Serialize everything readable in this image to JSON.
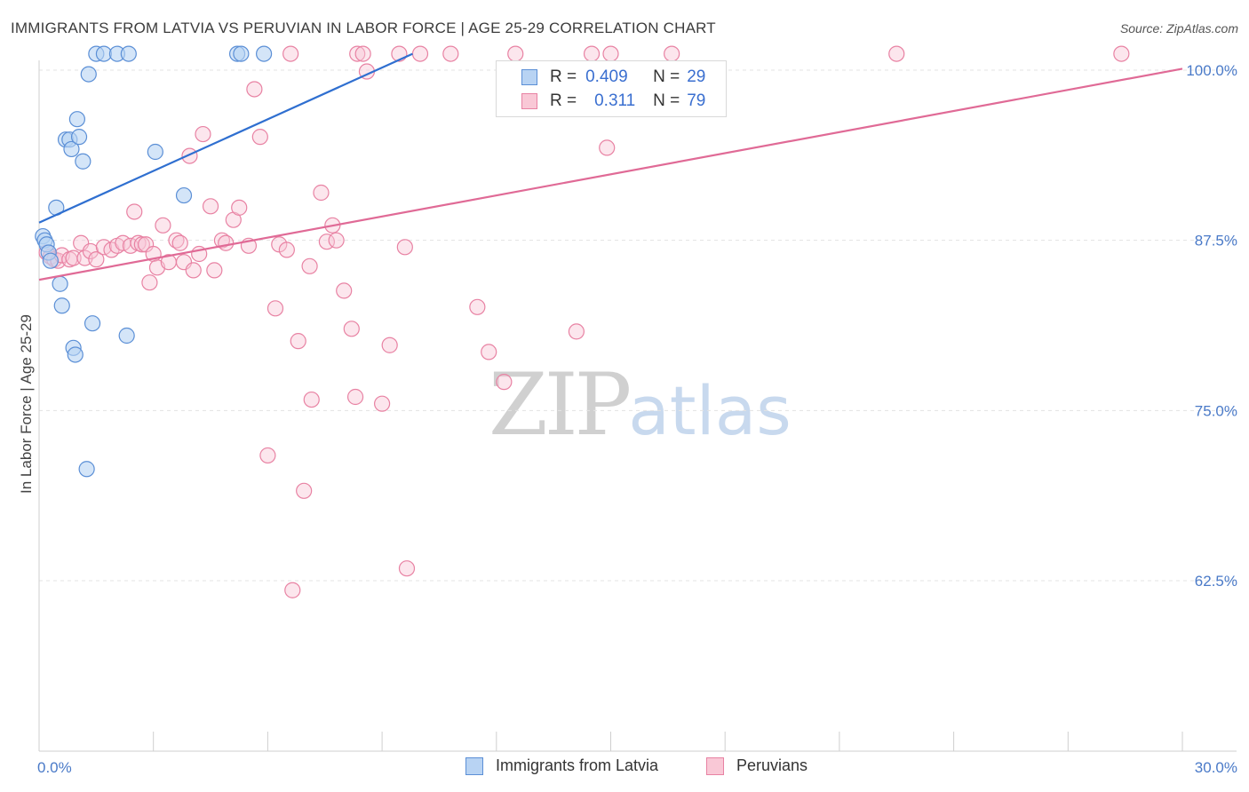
{
  "header": {
    "title": "IMMIGRANTS FROM LATVIA VS PERUVIAN IN LABOR FORCE | AGE 25-29 CORRELATION CHART",
    "source": "Source: ZipAtlas.com"
  },
  "watermark": {
    "zip": "ZIP",
    "atlas": "atlas"
  },
  "colors": {
    "latvia_fill": "#b8d3f3",
    "latvia_stroke": "#5b8fd6",
    "latvia_line": "#2f6fd0",
    "peru_fill": "#f9c8d6",
    "peru_stroke": "#e882a3",
    "peru_line": "#e06a96",
    "tick_text": "#4a7ac8",
    "grid": "#e3e3e3"
  },
  "legend": {
    "rows": [
      {
        "r_label": "R =",
        "r_value": "0.409",
        "n_label": "N =",
        "n_value": "29"
      },
      {
        "r_label": "R =",
        "r_value": "0.311",
        "n_label": "N =",
        "n_value": "79"
      }
    ]
  },
  "bottom_legend": {
    "items": [
      {
        "label": "Immigrants from Latvia"
      },
      {
        "label": "Peruvians"
      }
    ]
  },
  "chart_data": {
    "type": "scatter",
    "title": "IMMIGRANTS FROM LATVIA VS PERUVIAN IN LABOR FORCE | AGE 25-29 CORRELATION CHART",
    "xlabel": "",
    "ylabel": "In Labor Force | Age 25-29",
    "xlim": [
      0,
      30
    ],
    "ylim": [
      50,
      101.2
    ],
    "x_tick_labels": [
      {
        "value": 0,
        "label": "0.0%"
      },
      {
        "value": 30,
        "label": "30.0%"
      }
    ],
    "y_tick_labels": [
      {
        "value": 100,
        "label": "100.0%"
      },
      {
        "value": 87.5,
        "label": "87.5%"
      },
      {
        "value": 75,
        "label": "75.0%"
      },
      {
        "value": 62.5,
        "label": "62.5%"
      }
    ],
    "x_minor_ticks": [
      3,
      6,
      9,
      12,
      15,
      18,
      21,
      24,
      27
    ],
    "grid": true,
    "legend_position": "top-center",
    "series": [
      {
        "name": "Immigrants from Latvia",
        "R": 0.409,
        "N": 29,
        "trend": {
          "x": [
            0,
            9.8
          ],
          "y": [
            88.8,
            101.2
          ]
        },
        "points": [
          [
            0.1,
            87.8
          ],
          [
            0.15,
            87.5
          ],
          [
            0.2,
            87.2
          ],
          [
            0.25,
            86.6
          ],
          [
            0.3,
            86.0
          ],
          [
            0.45,
            89.9
          ],
          [
            0.55,
            84.3
          ],
          [
            0.6,
            82.7
          ],
          [
            0.7,
            94.9
          ],
          [
            0.8,
            94.9
          ],
          [
            0.85,
            94.2
          ],
          [
            0.9,
            79.6
          ],
          [
            0.95,
            79.1
          ],
          [
            1.0,
            96.4
          ],
          [
            1.05,
            95.1
          ],
          [
            1.15,
            93.3
          ],
          [
            1.25,
            70.7
          ],
          [
            1.3,
            99.7
          ],
          [
            1.4,
            81.4
          ],
          [
            1.5,
            101.2
          ],
          [
            1.7,
            101.2
          ],
          [
            2.05,
            101.2
          ],
          [
            2.3,
            80.5
          ],
          [
            2.35,
            101.2
          ],
          [
            3.05,
            94.0
          ],
          [
            3.8,
            90.8
          ],
          [
            5.2,
            101.2
          ],
          [
            5.3,
            101.2
          ],
          [
            5.9,
            101.2
          ]
        ]
      },
      {
        "name": "Peruvians",
        "R": 0.311,
        "N": 79,
        "trend": {
          "x": [
            0,
            30
          ],
          "y": [
            84.6,
            100.1
          ]
        },
        "points": [
          [
            0.2,
            86.6
          ],
          [
            0.3,
            86.3
          ],
          [
            0.4,
            86.1
          ],
          [
            0.5,
            86.0
          ],
          [
            0.6,
            86.4
          ],
          [
            0.8,
            86.1
          ],
          [
            0.9,
            86.2
          ],
          [
            1.1,
            87.3
          ],
          [
            1.2,
            86.2
          ],
          [
            1.35,
            86.7
          ],
          [
            1.5,
            86.1
          ],
          [
            1.7,
            87.0
          ],
          [
            1.9,
            86.8
          ],
          [
            2.05,
            87.1
          ],
          [
            2.2,
            87.3
          ],
          [
            2.4,
            87.1
          ],
          [
            2.5,
            89.6
          ],
          [
            2.6,
            87.3
          ],
          [
            2.7,
            87.2
          ],
          [
            2.8,
            87.2
          ],
          [
            2.9,
            84.4
          ],
          [
            3.0,
            86.5
          ],
          [
            3.1,
            85.5
          ],
          [
            3.25,
            88.6
          ],
          [
            3.4,
            85.9
          ],
          [
            3.6,
            87.5
          ],
          [
            3.7,
            87.3
          ],
          [
            3.8,
            85.9
          ],
          [
            3.95,
            93.7
          ],
          [
            4.05,
            85.3
          ],
          [
            4.2,
            86.5
          ],
          [
            4.3,
            95.3
          ],
          [
            4.5,
            90.0
          ],
          [
            4.6,
            85.3
          ],
          [
            4.8,
            87.5
          ],
          [
            4.9,
            87.3
          ],
          [
            5.1,
            89.0
          ],
          [
            5.25,
            89.9
          ],
          [
            5.5,
            87.1
          ],
          [
            5.65,
            98.6
          ],
          [
            5.8,
            95.1
          ],
          [
            6.0,
            71.7
          ],
          [
            6.2,
            82.5
          ],
          [
            6.3,
            87.2
          ],
          [
            6.5,
            86.8
          ],
          [
            6.6,
            101.2
          ],
          [
            6.65,
            61.8
          ],
          [
            6.8,
            80.1
          ],
          [
            6.95,
            69.1
          ],
          [
            7.1,
            85.6
          ],
          [
            7.15,
            75.8
          ],
          [
            7.4,
            91.0
          ],
          [
            7.55,
            87.4
          ],
          [
            7.7,
            88.6
          ],
          [
            7.8,
            87.5
          ],
          [
            8.0,
            83.8
          ],
          [
            8.2,
            81.0
          ],
          [
            8.3,
            76.0
          ],
          [
            8.35,
            101.2
          ],
          [
            8.5,
            101.2
          ],
          [
            8.6,
            99.9
          ],
          [
            9.0,
            75.5
          ],
          [
            9.2,
            79.8
          ],
          [
            9.45,
            101.2
          ],
          [
            9.6,
            87.0
          ],
          [
            9.65,
            63.4
          ],
          [
            10.0,
            101.2
          ],
          [
            10.8,
            101.2
          ],
          [
            11.5,
            82.6
          ],
          [
            11.8,
            79.3
          ],
          [
            12.2,
            77.1
          ],
          [
            12.5,
            101.2
          ],
          [
            14.1,
            80.8
          ],
          [
            14.5,
            101.2
          ],
          [
            14.9,
            94.3
          ],
          [
            15.0,
            101.2
          ],
          [
            16.6,
            101.2
          ],
          [
            22.5,
            101.2
          ],
          [
            28.4,
            101.2
          ]
        ]
      }
    ]
  }
}
